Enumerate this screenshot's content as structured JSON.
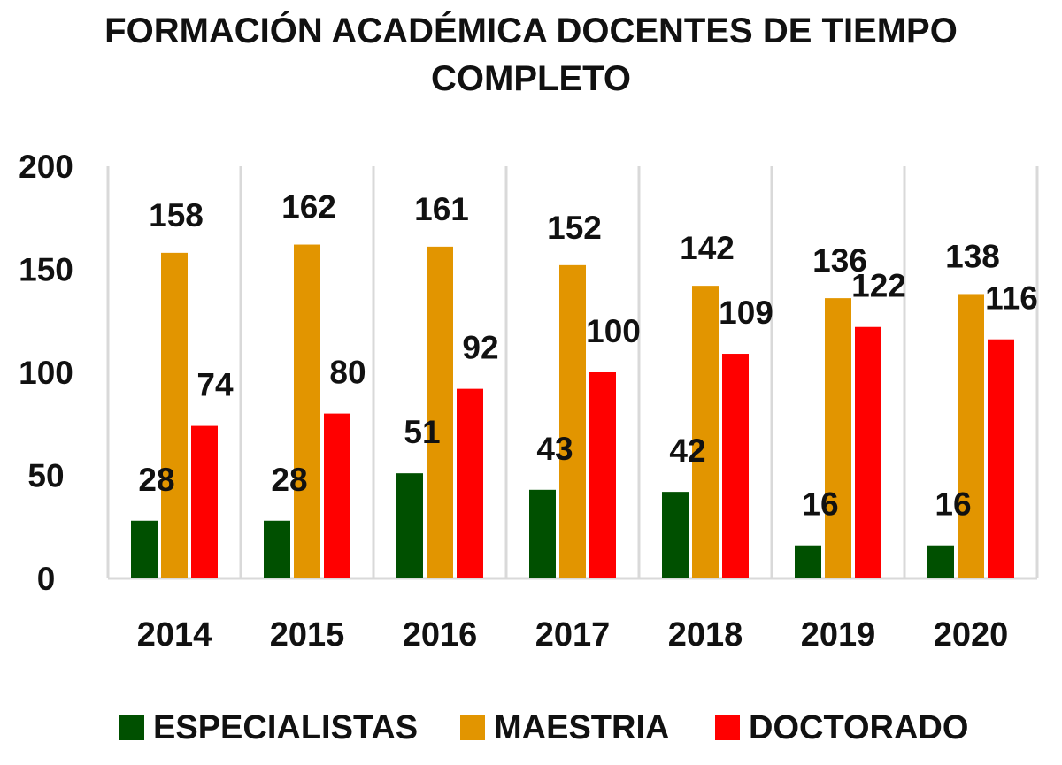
{
  "chart_data": {
    "type": "bar",
    "title": "FORMACIÓN ACADÉMICA DOCENTES DE TIEMPO COMPLETO",
    "title_lines": [
      "FORMACIÓN ACADÉMICA DOCENTES DE TIEMPO",
      "COMPLETO"
    ],
    "categories": [
      "2014",
      "2015",
      "2016",
      "2017",
      "2018",
      "2019",
      "2020"
    ],
    "series": [
      {
        "name": "ESPECIALISTAS",
        "color": "#005000",
        "values": [
          28,
          28,
          51,
          43,
          42,
          16,
          16
        ]
      },
      {
        "name": "MAESTRIA",
        "color": "#e29500",
        "values": [
          158,
          162,
          161,
          152,
          142,
          136,
          138
        ]
      },
      {
        "name": "DOCTORADO",
        "color": "#ff0000",
        "values": [
          74,
          80,
          92,
          100,
          109,
          122,
          116
        ]
      }
    ],
    "ylim": [
      0,
      200
    ],
    "yticks": [
      0,
      50,
      100,
      150,
      200
    ],
    "xlabel": "",
    "ylabel": "",
    "grid": "vertical separators",
    "legend": "bottom"
  }
}
